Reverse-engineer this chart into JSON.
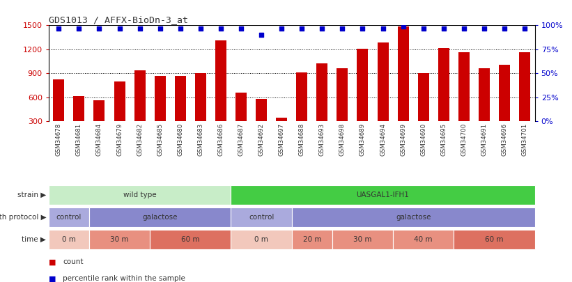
{
  "title": "GDS1013 / AFFX-BioDn-3_at",
  "samples": [
    "GSM34678",
    "GSM34681",
    "GSM34684",
    "GSM34679",
    "GSM34682",
    "GSM34685",
    "GSM34680",
    "GSM34683",
    "GSM34686",
    "GSM34687",
    "GSM34692",
    "GSM34697",
    "GSM34688",
    "GSM34693",
    "GSM34698",
    "GSM34689",
    "GSM34694",
    "GSM34699",
    "GSM34690",
    "GSM34695",
    "GSM34700",
    "GSM34691",
    "GSM34696",
    "GSM34701"
  ],
  "counts": [
    820,
    610,
    565,
    800,
    940,
    870,
    870,
    900,
    1310,
    660,
    575,
    340,
    910,
    1020,
    960,
    1210,
    1290,
    1490,
    900,
    1220,
    1160,
    960,
    1010,
    1160
  ],
  "percentile": [
    97,
    97,
    97,
    97,
    97,
    97,
    97,
    97,
    97,
    97,
    90,
    97,
    97,
    97,
    97,
    97,
    97,
    99,
    97,
    97,
    97,
    97,
    97,
    97
  ],
  "ylim_left": [
    300,
    1500
  ],
  "yticks_left": [
    300,
    600,
    900,
    1200,
    1500
  ],
  "ylim_right": [
    0,
    100
  ],
  "yticks_right": [
    0,
    25,
    50,
    75,
    100
  ],
  "bar_color": "#cc0000",
  "dot_color": "#0000cc",
  "strain_row": [
    {
      "label": "wild type",
      "start": 0,
      "end": 9,
      "color": "#c8edc8",
      "text_color": "#333333"
    },
    {
      "label": "UASGAL1-IFH1",
      "start": 9,
      "end": 24,
      "color": "#44cc44",
      "text_color": "#333333"
    }
  ],
  "protocol_row": [
    {
      "label": "control",
      "start": 0,
      "end": 2,
      "color": "#aaaadd",
      "text_color": "#333333"
    },
    {
      "label": "galactose",
      "start": 2,
      "end": 9,
      "color": "#8888cc",
      "text_color": "#333333"
    },
    {
      "label": "control",
      "start": 9,
      "end": 12,
      "color": "#aaaadd",
      "text_color": "#333333"
    },
    {
      "label": "galactose",
      "start": 12,
      "end": 24,
      "color": "#8888cc",
      "text_color": "#333333"
    }
  ],
  "time_row": [
    {
      "label": "0 m",
      "start": 0,
      "end": 2,
      "color": "#f2c8bc",
      "text_color": "#333333"
    },
    {
      "label": "30 m",
      "start": 2,
      "end": 5,
      "color": "#e89080",
      "text_color": "#333333"
    },
    {
      "label": "60 m",
      "start": 5,
      "end": 9,
      "color": "#dd7060",
      "text_color": "#333333"
    },
    {
      "label": "0 m",
      "start": 9,
      "end": 12,
      "color": "#f2c8bc",
      "text_color": "#333333"
    },
    {
      "label": "20 m",
      "start": 12,
      "end": 14,
      "color": "#e89080",
      "text_color": "#333333"
    },
    {
      "label": "30 m",
      "start": 14,
      "end": 17,
      "color": "#e89080",
      "text_color": "#333333"
    },
    {
      "label": "40 m",
      "start": 17,
      "end": 20,
      "color": "#e89080",
      "text_color": "#333333"
    },
    {
      "label": "60 m",
      "start": 20,
      "end": 24,
      "color": "#dd7060",
      "text_color": "#333333"
    }
  ],
  "legend_count_color": "#cc0000",
  "legend_pct_color": "#0000cc",
  "background_color": "#ffffff"
}
